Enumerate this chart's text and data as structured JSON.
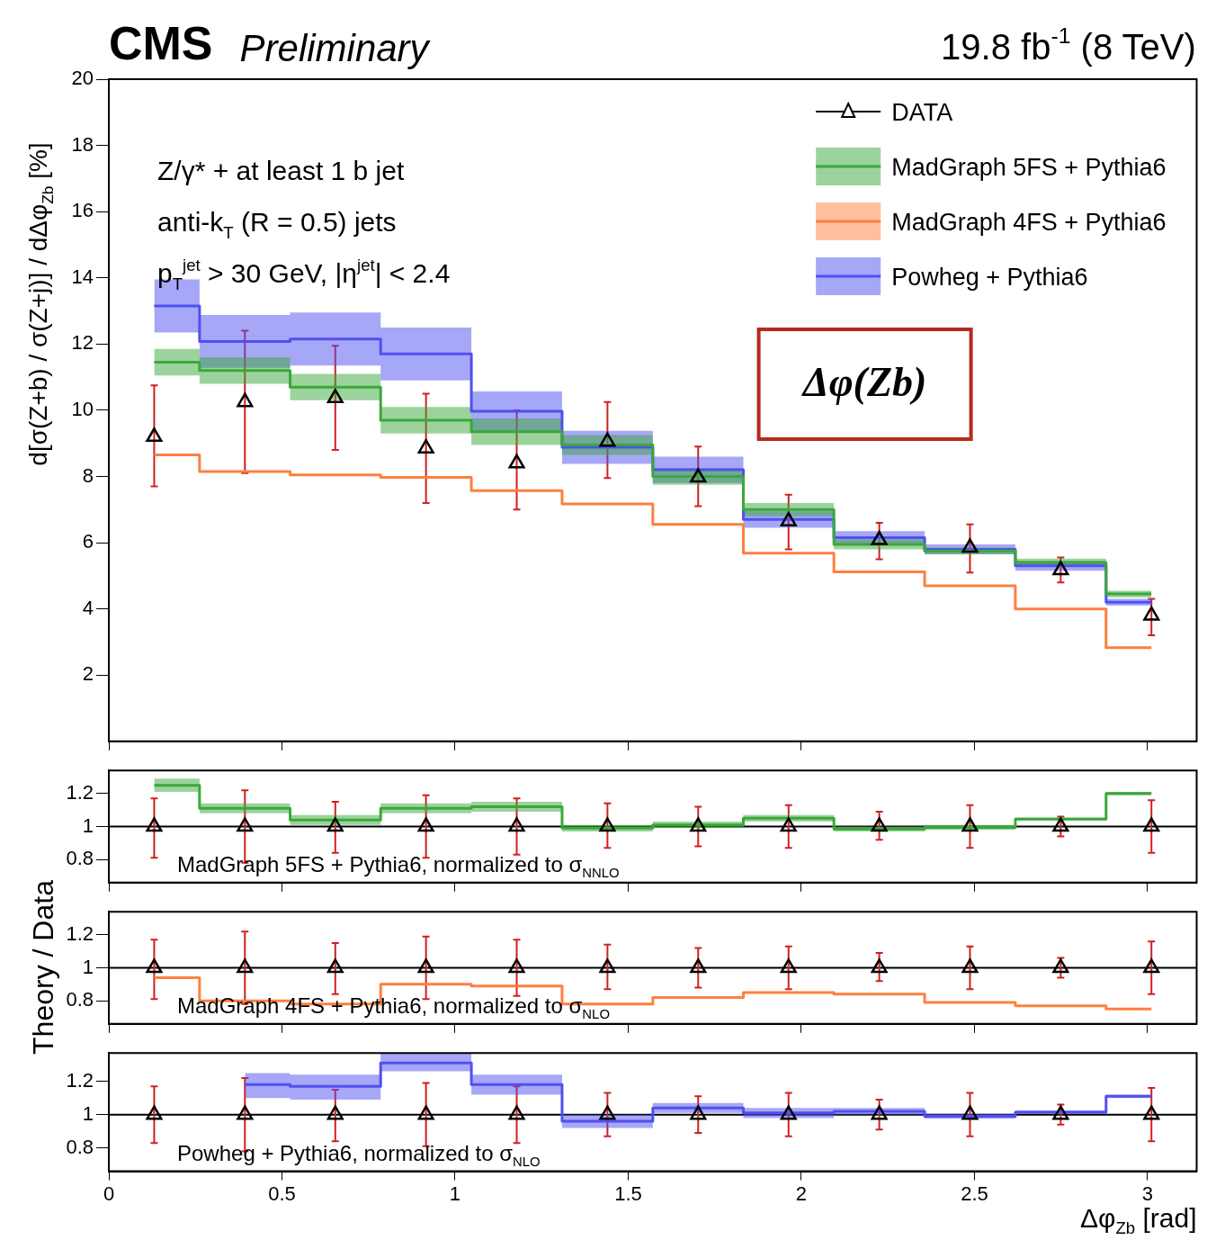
{
  "chart_data": [
    {
      "type": "step",
      "title": "CMS",
      "subtitle": "Preliminary",
      "ylabel": "d[σ(Z+b) / σ(Z+j)] / dΔφ$_{Zb}$ [%]",
      "legend": "top right",
      "tick_labels": "y",
      "annotations": [
        "19.8 fb$^{-1}$ (8 TeV)",
        "Z/γ* + at least 1 b jet",
        "anti-k$_{T}$ (R = 0.5) jets",
        "p$_{T}$$^{jet}$ > 30 GeV, |η$^{jet}$| < 2.4",
        "Δφ(Zb)"
      ],
      "xlim": [
        0,
        3.1416
      ],
      "xticks": [
        0,
        0.5,
        1,
        1.5,
        2,
        2.5,
        3
      ],
      "ylim": [
        0,
        20
      ],
      "yticks": [
        2,
        4,
        6,
        8,
        10,
        12,
        14,
        16,
        18,
        20
      ],
      "x": [
        0.131,
        0.393,
        0.654,
        0.916,
        1.178,
        1.44,
        1.702,
        1.963,
        2.225,
        2.487,
        2.749,
        3.011
      ],
      "series": [
        {
          "name": "DATA",
          "type": "scatter",
          "marker": "triangle",
          "color": "#000000",
          "values": [
            9.2,
            10.25,
            10.37,
            8.85,
            8.4,
            9.05,
            7.97,
            6.65,
            6.08,
            5.85,
            5.17,
            3.8
          ],
          "errors": [
            [
              7.7,
              10.75
            ],
            [
              8.1,
              12.4
            ],
            [
              8.8,
              11.95
            ],
            [
              7.2,
              10.5
            ],
            [
              7.0,
              10.0
            ],
            [
              7.95,
              10.25
            ],
            [
              7.1,
              8.9
            ],
            [
              5.8,
              7.45
            ],
            [
              5.5,
              6.6
            ],
            [
              5.1,
              6.55
            ],
            [
              4.8,
              5.55
            ],
            [
              3.2,
              4.3
            ]
          ]
        },
        {
          "name": "MadGraph 5FS + Pythia6",
          "color": "#3aa83a",
          "values": [
            11.45,
            11.2,
            10.7,
            9.7,
            9.35,
            8.95,
            8.0,
            7.0,
            5.95,
            5.75,
            5.4,
            4.45
          ],
          "lower": [
            11.05,
            10.8,
            10.3,
            9.3,
            8.95,
            8.65,
            7.75,
            6.8,
            5.8,
            5.65,
            5.28,
            4.35
          ],
          "upper": [
            11.85,
            11.6,
            11.1,
            10.1,
            9.75,
            9.25,
            8.25,
            7.2,
            6.1,
            5.85,
            5.52,
            4.55
          ]
        },
        {
          "name": "MadGraph 4FS + Pythia6",
          "color": "#ff7f3f",
          "values": [
            8.65,
            8.15,
            8.05,
            7.97,
            7.57,
            7.17,
            6.55,
            5.68,
            5.12,
            4.7,
            4.0,
            2.83
          ]
        },
        {
          "name": "Powheg + Pythia6",
          "color": "#5050f0",
          "values": [
            13.15,
            12.08,
            12.15,
            11.7,
            9.97,
            8.88,
            8.2,
            6.7,
            6.15,
            5.8,
            5.3,
            4.2
          ],
          "lower": [
            12.35,
            11.28,
            11.35,
            10.9,
            9.37,
            8.38,
            7.8,
            6.45,
            5.95,
            5.65,
            5.15,
            4.1
          ],
          "upper": [
            13.95,
            12.88,
            12.95,
            12.5,
            10.57,
            9.38,
            8.6,
            6.95,
            6.35,
            5.95,
            5.45,
            4.3
          ]
        }
      ]
    },
    {
      "type": "step",
      "tick_labels": "y",
      "annotations": [
        "MadGraph 5FS + Pythia6, normalized to σ$_{NNLO}$"
      ],
      "xlim": [
        0,
        3.1416
      ],
      "xticks": [
        0,
        0.5,
        1,
        1.5,
        2,
        2.5,
        3
      ],
      "ylim": [
        0.66,
        1.34
      ],
      "yticks": [
        0.8,
        1,
        1.2
      ],
      "ref_lines": [
        {
          "axis": "y",
          "value": 1,
          "color": "#000000"
        }
      ],
      "x": [
        0.131,
        0.393,
        0.654,
        0.916,
        1.178,
        1.44,
        1.702,
        1.963,
        2.225,
        2.487,
        2.749,
        3.011
      ],
      "series": [
        {
          "type": "scatter",
          "marker": "triangle",
          "color": "#000000",
          "values": [
            1,
            1,
            1,
            1,
            1,
            1,
            1,
            1,
            1,
            1,
            1,
            1
          ],
          "errors": [
            [
              0.81,
              1.17
            ],
            [
              0.78,
              1.22
            ],
            [
              0.84,
              1.15
            ],
            [
              0.81,
              1.19
            ],
            [
              0.83,
              1.17
            ],
            [
              0.87,
              1.14
            ],
            [
              0.88,
              1.12
            ],
            [
              0.87,
              1.13
            ],
            [
              0.92,
              1.09
            ],
            [
              0.87,
              1.13
            ],
            [
              0.94,
              1.06
            ],
            [
              0.84,
              1.16
            ]
          ]
        },
        {
          "color": "#3aa83a",
          "values": [
            1.25,
            1.11,
            1.04,
            1.11,
            1.12,
            0.99,
            1.01,
            1.05,
            0.985,
            0.995,
            1.045,
            1.2
          ],
          "lower": [
            1.21,
            1.08,
            1.01,
            1.08,
            1.09,
            0.97,
            0.99,
            1.03,
            0.97,
            0.98,
            1.035,
            1.19
          ],
          "upper": [
            1.29,
            1.14,
            1.07,
            1.14,
            1.15,
            1.01,
            1.03,
            1.07,
            1.0,
            1.01,
            1.055,
            1.21
          ]
        }
      ]
    },
    {
      "type": "step",
      "tick_labels": "y",
      "ylabel": "Theory / Data",
      "annotations": [
        "MadGraph 4FS + Pythia6, normalized to σ$_{NLO}$"
      ],
      "xlim": [
        0,
        3.1416
      ],
      "xticks": [
        0,
        0.5,
        1,
        1.5,
        2,
        2.5,
        3
      ],
      "ylim": [
        0.66,
        1.34
      ],
      "yticks": [
        0.8,
        1,
        1.2
      ],
      "ref_lines": [
        {
          "axis": "y",
          "value": 1,
          "color": "#000000"
        }
      ],
      "x": [
        0.131,
        0.393,
        0.654,
        0.916,
        1.178,
        1.44,
        1.702,
        1.963,
        2.225,
        2.487,
        2.749,
        3.011
      ],
      "series": [
        {
          "type": "scatter",
          "marker": "triangle",
          "color": "#000000",
          "values": [
            1,
            1,
            1,
            1,
            1,
            1,
            1,
            1,
            1,
            1,
            1,
            1
          ],
          "errors": [
            [
              0.81,
              1.17
            ],
            [
              0.78,
              1.22
            ],
            [
              0.84,
              1.15
            ],
            [
              0.81,
              1.19
            ],
            [
              0.83,
              1.17
            ],
            [
              0.87,
              1.14
            ],
            [
              0.88,
              1.12
            ],
            [
              0.87,
              1.13
            ],
            [
              0.92,
              1.09
            ],
            [
              0.87,
              1.13
            ],
            [
              0.94,
              1.06
            ],
            [
              0.84,
              1.16
            ]
          ]
        },
        {
          "color": "#ff7f3f",
          "values": [
            0.94,
            0.8,
            0.78,
            0.9,
            0.89,
            0.78,
            0.82,
            0.85,
            0.84,
            0.79,
            0.77,
            0.75
          ]
        }
      ]
    },
    {
      "type": "step",
      "xlabel": "Δφ$_{Zb}$ [rad]",
      "annotations": [
        "Powheg + Pythia6, normalized to σ$_{NLO}$"
      ],
      "xlim": [
        0,
        3.1416
      ],
      "xticks": [
        0,
        0.5,
        1,
        1.5,
        2,
        2.5,
        3
      ],
      "ylim": [
        0.66,
        1.37
      ],
      "yticks": [
        0.8,
        1,
        1.2
      ],
      "ref_lines": [
        {
          "axis": "y",
          "value": 1,
          "color": "#000000"
        }
      ],
      "x": [
        0.131,
        0.393,
        0.654,
        0.916,
        1.178,
        1.44,
        1.702,
        1.963,
        2.225,
        2.487,
        2.749,
        3.011
      ],
      "series": [
        {
          "type": "scatter",
          "marker": "triangle",
          "color": "#000000",
          "values": [
            1,
            1,
            1,
            1,
            1,
            1,
            1,
            1,
            1,
            1,
            1,
            1
          ],
          "errors": [
            [
              0.83,
              1.17
            ],
            [
              0.78,
              1.22
            ],
            [
              0.84,
              1.15
            ],
            [
              0.81,
              1.19
            ],
            [
              0.83,
              1.17
            ],
            [
              0.87,
              1.13
            ],
            [
              0.89,
              1.11
            ],
            [
              0.87,
              1.13
            ],
            [
              0.91,
              1.09
            ],
            [
              0.87,
              1.13
            ],
            [
              0.94,
              1.06
            ],
            [
              0.84,
              1.16
            ]
          ]
        },
        {
          "color": "#5050f0",
          "values": [
            null,
            1.18,
            1.17,
            1.31,
            1.18,
            0.96,
            1.04,
            1.01,
            1.02,
            0.99,
            1.015,
            1.11
          ],
          "lower": [
            null,
            1.1,
            1.09,
            1.26,
            1.12,
            0.92,
            1.01,
            0.98,
            1.0,
            0.975,
            1.005,
            1.1
          ],
          "upper": [
            null,
            1.25,
            1.24,
            1.37,
            1.24,
            1.0,
            1.07,
            1.04,
            1.04,
            1.005,
            1.025,
            1.12
          ]
        }
      ]
    }
  ]
}
